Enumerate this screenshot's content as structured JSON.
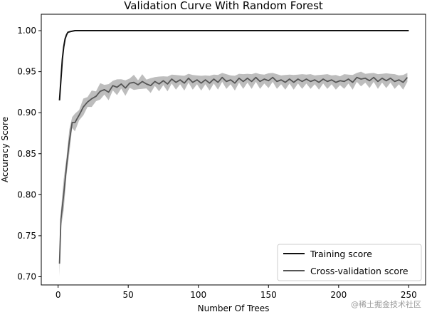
{
  "chart_data": {
    "type": "line",
    "title": "Validation Curve With Random Forest",
    "xlabel": "Number Of Trees",
    "ylabel": "Accuracy Score",
    "xlim": [
      -12,
      262
    ],
    "ylim": [
      0.69,
      1.02
    ],
    "xticks": [
      0,
      50,
      100,
      150,
      200,
      250
    ],
    "yticks": [
      0.7,
      0.75,
      0.8,
      0.85,
      0.9,
      0.95,
      1.0
    ],
    "legend_position": "lower-right",
    "series": [
      {
        "name": "Training score",
        "color": "#111111",
        "band": null,
        "points": [
          [
            1,
            0.915
          ],
          [
            2,
            0.94
          ],
          [
            3,
            0.965
          ],
          [
            4,
            0.98
          ],
          [
            5,
            0.99
          ],
          [
            6,
            0.995
          ],
          [
            7,
            0.998
          ],
          [
            9,
            0.999
          ],
          [
            12,
            1.0
          ],
          [
            20,
            1.0
          ],
          [
            50,
            1.0
          ],
          [
            100,
            1.0
          ],
          [
            150,
            1.0
          ],
          [
            200,
            1.0
          ],
          [
            250,
            1.0
          ]
        ]
      },
      {
        "name": "Cross-validation score",
        "color": "#555555",
        "band_color": "#bdbdbd",
        "points": [
          [
            1,
            0.716
          ],
          [
            2,
            0.77
          ],
          [
            4,
            0.8
          ],
          [
            6,
            0.835
          ],
          [
            8,
            0.865
          ],
          [
            10,
            0.888
          ],
          [
            12,
            0.888
          ],
          [
            15,
            0.897
          ],
          [
            18,
            0.907
          ],
          [
            21,
            0.913
          ],
          [
            24,
            0.917
          ],
          [
            27,
            0.92
          ],
          [
            30,
            0.926
          ],
          [
            33,
            0.928
          ],
          [
            36,
            0.925
          ],
          [
            39,
            0.933
          ],
          [
            42,
            0.931
          ],
          [
            45,
            0.935
          ],
          [
            48,
            0.93
          ],
          [
            51,
            0.936
          ],
          [
            54,
            0.937
          ],
          [
            57,
            0.934
          ],
          [
            60,
            0.938
          ],
          [
            63,
            0.935
          ],
          [
            66,
            0.933
          ],
          [
            69,
            0.938
          ],
          [
            72,
            0.935
          ],
          [
            75,
            0.939
          ],
          [
            78,
            0.935
          ],
          [
            81,
            0.941
          ],
          [
            84,
            0.937
          ],
          [
            87,
            0.94
          ],
          [
            90,
            0.936
          ],
          [
            93,
            0.942
          ],
          [
            96,
            0.937
          ],
          [
            99,
            0.94
          ],
          [
            102,
            0.936
          ],
          [
            105,
            0.94
          ],
          [
            108,
            0.936
          ],
          [
            111,
            0.941
          ],
          [
            114,
            0.937
          ],
          [
            117,
            0.943
          ],
          [
            120,
            0.938
          ],
          [
            123,
            0.94
          ],
          [
            126,
            0.936
          ],
          [
            129,
            0.942
          ],
          [
            132,
            0.938
          ],
          [
            135,
            0.942
          ],
          [
            138,
            0.938
          ],
          [
            141,
            0.943
          ],
          [
            144,
            0.938
          ],
          [
            147,
            0.941
          ],
          [
            150,
            0.939
          ],
          [
            153,
            0.943
          ],
          [
            156,
            0.938
          ],
          [
            159,
            0.94
          ],
          [
            162,
            0.937
          ],
          [
            165,
            0.941
          ],
          [
            168,
            0.937
          ],
          [
            171,
            0.941
          ],
          [
            174,
            0.938
          ],
          [
            177,
            0.941
          ],
          [
            180,
            0.938
          ],
          [
            183,
            0.94
          ],
          [
            186,
            0.937
          ],
          [
            189,
            0.941
          ],
          [
            192,
            0.938
          ],
          [
            195,
            0.94
          ],
          [
            198,
            0.937
          ],
          [
            201,
            0.939
          ],
          [
            204,
            0.938
          ],
          [
            207,
            0.941
          ],
          [
            210,
            0.937
          ],
          [
            213,
            0.943
          ],
          [
            216,
            0.941
          ],
          [
            219,
            0.942
          ],
          [
            222,
            0.939
          ],
          [
            225,
            0.943
          ],
          [
            228,
            0.938
          ],
          [
            231,
            0.942
          ],
          [
            234,
            0.939
          ],
          [
            237,
            0.942
          ],
          [
            240,
            0.938
          ],
          [
            243,
            0.94
          ],
          [
            246,
            0.937
          ],
          [
            249,
            0.943
          ]
        ],
        "band_halfwidth": [
          [
            1,
            0.016
          ],
          [
            5,
            0.02
          ],
          [
            10,
            0.011
          ],
          [
            20,
            0.01
          ],
          [
            30,
            0.01
          ],
          [
            60,
            0.009
          ],
          [
            100,
            0.009
          ],
          [
            150,
            0.009
          ],
          [
            200,
            0.009
          ],
          [
            250,
            0.009
          ]
        ]
      }
    ]
  },
  "watermark": "@稀土掘金技术社区"
}
